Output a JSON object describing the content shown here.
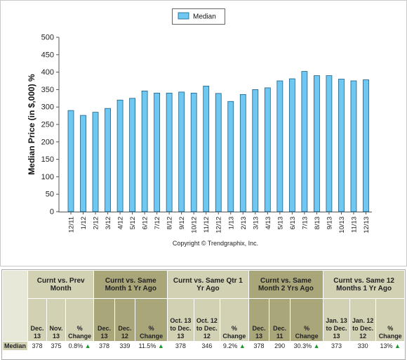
{
  "chart_data": {
    "type": "bar",
    "categories": [
      "12/11",
      "1/12",
      "2/12",
      "3/12",
      "4/12",
      "5/12",
      "6/12",
      "7/12",
      "8/12",
      "9/12",
      "10/12",
      "11/12",
      "12/12",
      "1/13",
      "2/13",
      "3/13",
      "4/13",
      "5/13",
      "6/13",
      "7/13",
      "8/13",
      "9/13",
      "10/13",
      "11/13",
      "12/13"
    ],
    "series": [
      {
        "name": "Median",
        "values": [
          290,
          276,
          285,
          296,
          320,
          325,
          346,
          340,
          340,
          343,
          340,
          360,
          339,
          316,
          336,
          350,
          355,
          375,
          381,
          402,
          390,
          390,
          380,
          375,
          378
        ]
      }
    ],
    "ylabel": "Median Price (in $,000) %",
    "xlabel": "",
    "ylim": [
      0,
      500
    ],
    "yticks": [
      0,
      50,
      100,
      150,
      200,
      250,
      300,
      350,
      400,
      450,
      500
    ],
    "legend_position": "top-center",
    "grid": false,
    "bar_color": "#6ec8f2",
    "bar_stroke": "#1b5f86",
    "copyright": "Copyright © Trendgraphix, Inc."
  },
  "table": {
    "row_label": "Median",
    "groups": [
      {
        "title": "Curnt vs. Prev Month",
        "shade": "a",
        "headers": [
          "Dec. 13",
          "Nov. 13",
          "% Change"
        ],
        "values": [
          "378",
          "375",
          "0.8%"
        ]
      },
      {
        "title": "Curnt vs. Same Month 1 Yr Ago",
        "shade": "b",
        "headers": [
          "Dec. 13",
          "Dec. 12",
          "% Change"
        ],
        "values": [
          "378",
          "339",
          "11.5%"
        ]
      },
      {
        "title": "Curnt vs. Same Qtr 1 Yr Ago",
        "shade": "a",
        "headers": [
          "Oct. 13 to Dec. 13",
          "Oct. 12 to Dec. 12",
          "% Change"
        ],
        "values": [
          "378",
          "346",
          "9.2%"
        ]
      },
      {
        "title": "Curnt vs. Same Month 2 Yrs Ago",
        "shade": "b",
        "headers": [
          "Dec. 13",
          "Dec. 11",
          "% Change"
        ],
        "values": [
          "378",
          "290",
          "30.3%"
        ]
      },
      {
        "title": "Curnt vs. Same 12 Months 1 Yr Ago",
        "shade": "a",
        "headers": [
          "Jan. 13 to Dec. 13",
          "Jan. 12 to Dec. 12",
          "% Change"
        ],
        "values": [
          "373",
          "330",
          "13%"
        ]
      }
    ],
    "up_arrow": "▲",
    "up_color": "#1a9a2a"
  }
}
